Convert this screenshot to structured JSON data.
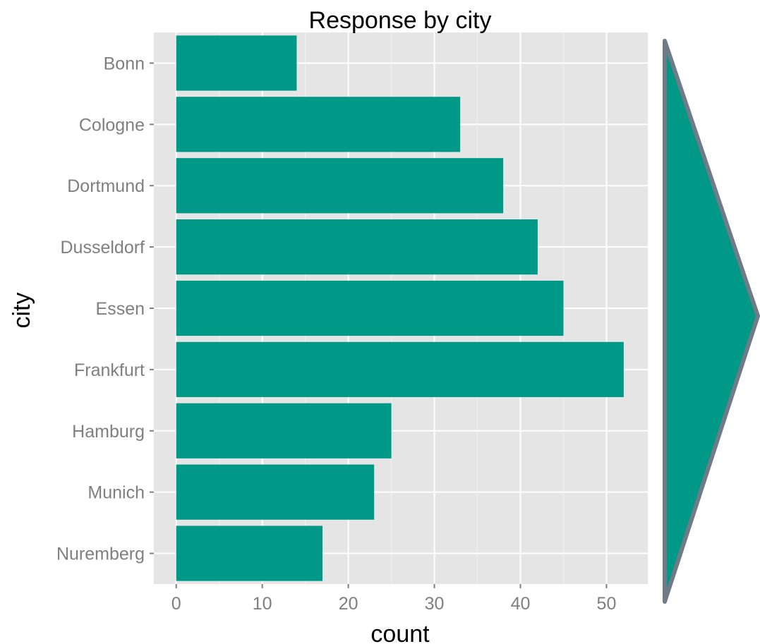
{
  "chart_data": {
    "type": "bar",
    "orientation": "horizontal",
    "title": "Response by city",
    "xlabel": "count",
    "ylabel": "city",
    "categories": [
      "Bonn",
      "Cologne",
      "Dortmund",
      "Dusseldorf",
      "Essen",
      "Frankfurt",
      "Hamburg",
      "Munich",
      "Nuremberg"
    ],
    "values": [
      14,
      33,
      38,
      42,
      45,
      52,
      25,
      23,
      17
    ],
    "xlim": [
      -2.6,
      54.8
    ],
    "x_ticks": [
      0,
      10,
      20,
      30,
      40,
      50
    ],
    "grid": true,
    "legend": "none"
  },
  "colors": {
    "bar": "#009988",
    "panel_background": "#e5e5e5",
    "grid_major": "#ffffff",
    "grid_minor": "#f2f2f2",
    "tick_text": "#7f7f7f",
    "arrow_fill": "#009988",
    "arrow_stroke": "#6f7b87"
  },
  "decoration": {
    "arrow_icon": "chevron-right-arrow"
  }
}
